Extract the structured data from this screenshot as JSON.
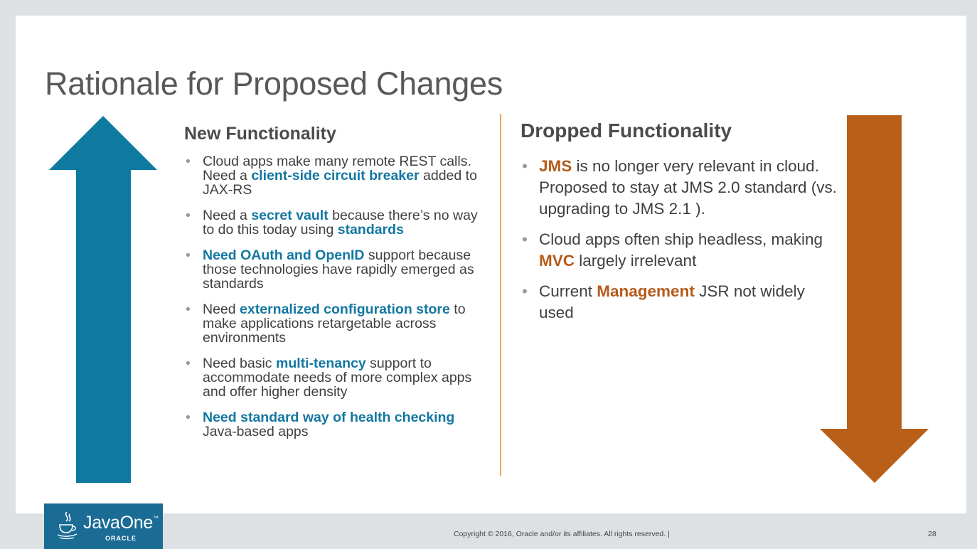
{
  "title": "Rationale for Proposed Changes",
  "colors": {
    "blue_accent": "#1377a1",
    "orange_accent": "#b55b1c",
    "up_arrow": "#0e7a9f",
    "down_arrow": "#b8601a"
  },
  "left": {
    "heading": "New Functionality",
    "items": [
      {
        "parts": [
          {
            "t": "Cloud apps make many remote REST calls. Need a ",
            "h": false
          },
          {
            "t": "client-side circuit breaker",
            "h": true
          },
          {
            "t": " added to JAX-RS",
            "h": false
          }
        ]
      },
      {
        "parts": [
          {
            "t": "Need a ",
            "h": false
          },
          {
            "t": "secret vault",
            "h": true
          },
          {
            "t": " because there’s no way to do this today using ",
            "h": false
          },
          {
            "t": "standards",
            "h": true
          }
        ]
      },
      {
        "parts": [
          {
            "t": "Need OAuth and OpenID",
            "h": true
          },
          {
            "t": " support because those technologies have rapidly emerged as standards",
            "h": false
          }
        ]
      },
      {
        "parts": [
          {
            "t": "Need ",
            "h": false
          },
          {
            "t": "externalized configuration store",
            "h": true
          },
          {
            "t": " to make applications retargetable across environments",
            "h": false
          }
        ]
      },
      {
        "parts": [
          {
            "t": "Need basic ",
            "h": false
          },
          {
            "t": "multi-tenancy",
            "h": true
          },
          {
            "t": " support to accommodate needs of more complex apps and offer higher density",
            "h": false
          }
        ]
      },
      {
        "parts": [
          {
            "t": "Need standard way of health checking",
            "h": true
          },
          {
            "t": " Java-based apps",
            "h": false
          }
        ]
      }
    ]
  },
  "right": {
    "heading": "Dropped Functionality",
    "items": [
      {
        "parts": [
          {
            "t": "JMS",
            "h": true
          },
          {
            "t": " is no longer very relevant in cloud. Proposed to stay at JMS 2.0 standard (vs. upgrading to JMS 2.1 ).",
            "h": false
          }
        ]
      },
      {
        "parts": [
          {
            "t": "Cloud apps often ship headless, making ",
            "h": false
          },
          {
            "t": "MVC",
            "h": true
          },
          {
            "t": " largely irrelevant",
            "h": false
          }
        ]
      },
      {
        "parts": [
          {
            "t": "Current ",
            "h": false
          },
          {
            "t": "Management",
            "h": true
          },
          {
            "t": " JSR not widely used",
            "h": false
          }
        ]
      }
    ]
  },
  "logo": {
    "brand": "JavaOne",
    "tm": "™",
    "sub": "ORACLE",
    "icon": "java-cup-icon"
  },
  "footer": {
    "copyright": "Copyright © 2016, Oracle and/or its affiliates. All rights reserved.  |",
    "page": "28"
  }
}
